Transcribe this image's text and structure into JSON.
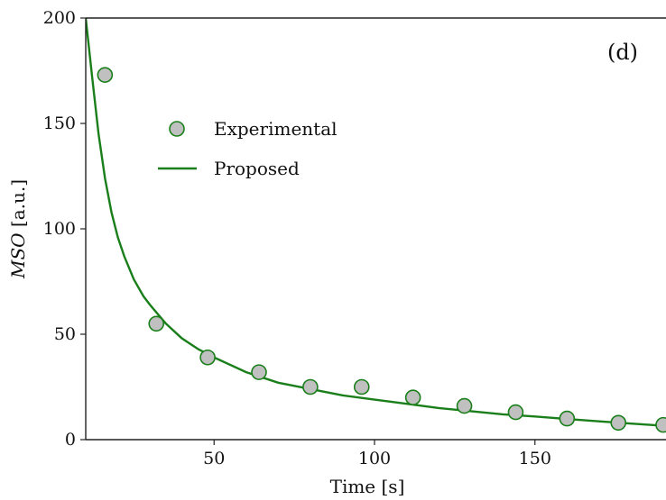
{
  "chart_data": {
    "type": "scatter",
    "xlabel": "Time [s]",
    "ylabel_italic": "MSO",
    "ylabel_unit": "[a.u.]",
    "xlim": [
      10,
      190
    ],
    "ylim": [
      0,
      200
    ],
    "x_ticks": [
      50,
      100,
      150
    ],
    "x_tick_labels": [
      "50",
      "100",
      "150"
    ],
    "y_ticks": [
      0,
      50,
      100,
      150,
      200
    ],
    "y_tick_labels": [
      "0",
      "50",
      "100",
      "150",
      "200"
    ],
    "panel_label": "(d)",
    "legend": {
      "placement": "upper-left",
      "entries": [
        "Experimental",
        "Proposed"
      ]
    },
    "colors": {
      "line": "#1a7f1a",
      "marker_fill": "#c0c0c0",
      "marker_edge": "#1a7f1a",
      "axis": "#222222"
    },
    "series": [
      {
        "name": "Experimental",
        "kind": "scatter",
        "x": [
          16,
          32,
          48,
          64,
          80,
          96,
          112,
          128,
          144,
          160,
          176,
          190
        ],
        "y": [
          173,
          55,
          39,
          32,
          25,
          25,
          20,
          16,
          13,
          10,
          8,
          7
        ]
      },
      {
        "name": "Proposed",
        "kind": "line",
        "x": [
          10,
          12,
          14,
          16,
          18,
          20,
          22,
          25,
          28,
          30,
          35,
          40,
          45,
          50,
          60,
          70,
          80,
          90,
          100,
          110,
          120,
          130,
          140,
          150,
          160,
          170,
          180,
          190
        ],
        "y": [
          200,
          172,
          145,
          124,
          108,
          96,
          87,
          76,
          68,
          64,
          55,
          48,
          43,
          39,
          32,
          27,
          24,
          21,
          19,
          17,
          15,
          13.5,
          12,
          11,
          9.8,
          8.7,
          7.6,
          6.6
        ]
      }
    ]
  }
}
